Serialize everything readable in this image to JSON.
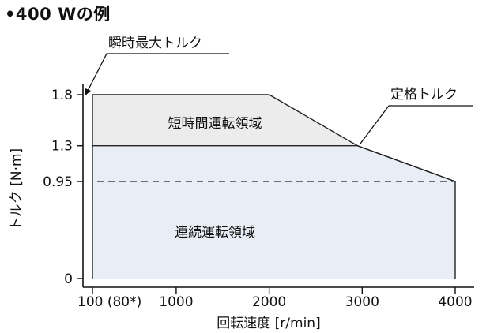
{
  "title": "•400 Wの例",
  "chart_data": {
    "type": "area",
    "xlabel": "回転速度 [r/min]",
    "ylabel": "トルク [N·m]",
    "xlim": [
      100,
      4000
    ],
    "ylim": [
      0,
      1.8
    ],
    "x_ticks": [
      {
        "value": 100,
        "label": "100 (80*)"
      },
      {
        "value": 1000,
        "label": "1000"
      },
      {
        "value": 2000,
        "label": "2000"
      },
      {
        "value": 3000,
        "label": "3000"
      },
      {
        "value": 4000,
        "label": "4000"
      }
    ],
    "y_ticks": [
      {
        "value": 0,
        "label": "0"
      },
      {
        "value": 0.95,
        "label": "0.95"
      },
      {
        "value": 1.3,
        "label": "1.3"
      },
      {
        "value": 1.8,
        "label": "1.8"
      }
    ],
    "series": [
      {
        "name": "瞬時最大トルク",
        "x": [
          100,
          2000,
          2950,
          4000
        ],
        "y": [
          1.8,
          1.8,
          1.3,
          0.95
        ]
      },
      {
        "name": "定格トルク",
        "x": [
          100,
          2950,
          4000
        ],
        "y": [
          1.3,
          1.3,
          0.95
        ]
      }
    ],
    "regions": [
      {
        "label": "短時間運転領域",
        "fill": "#ececec"
      },
      {
        "label": "連続運転領域",
        "fill": "#e8edf6"
      }
    ],
    "reference_line": {
      "y": 0.95,
      "style": "dashed"
    },
    "annotations": [
      "瞬時最大トルク",
      "定格トルク"
    ]
  }
}
